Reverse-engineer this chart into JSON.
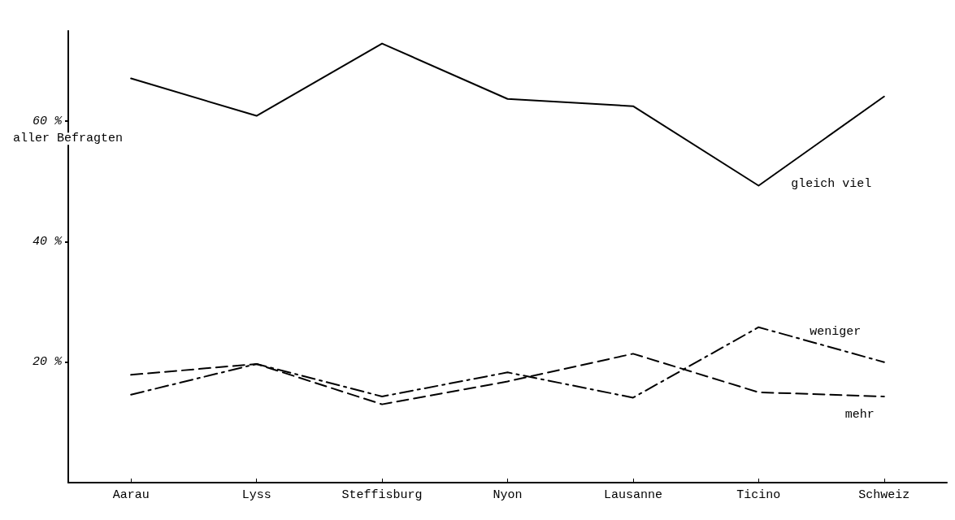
{
  "chart_data": {
    "type": "line",
    "ylabel": "aller Befragten",
    "categories": [
      "Aarau",
      "Lyss",
      "Steffisburg",
      "Nyon",
      "Lausanne",
      "Ticino",
      "Schweiz"
    ],
    "series": [
      {
        "name": "gleich viel",
        "color": "#000000",
        "line_style": "solid",
        "values": [
          67.1,
          60.9,
          72.9,
          63.7,
          62.5,
          49.3,
          64.1
        ]
      },
      {
        "name": "weniger",
        "color": "#000000",
        "line_style": "dashdot",
        "values": [
          14.6,
          19.7,
          14.3,
          18.3,
          14.1,
          25.8,
          20.0
        ]
      },
      {
        "name": "mehr",
        "color": "#000000",
        "line_style": "dashed",
        "values": [
          17.9,
          19.7,
          13.0,
          16.8,
          21.4,
          15.0,
          14.3
        ]
      }
    ],
    "ylim": [
      0,
      75
    ],
    "yticks": [
      {
        "value": 20,
        "label": "20 %"
      },
      {
        "value": 40,
        "label": "40 %"
      },
      {
        "value": 60,
        "label": "60 %"
      }
    ],
    "grid": false,
    "legend": false,
    "marker": "none"
  }
}
